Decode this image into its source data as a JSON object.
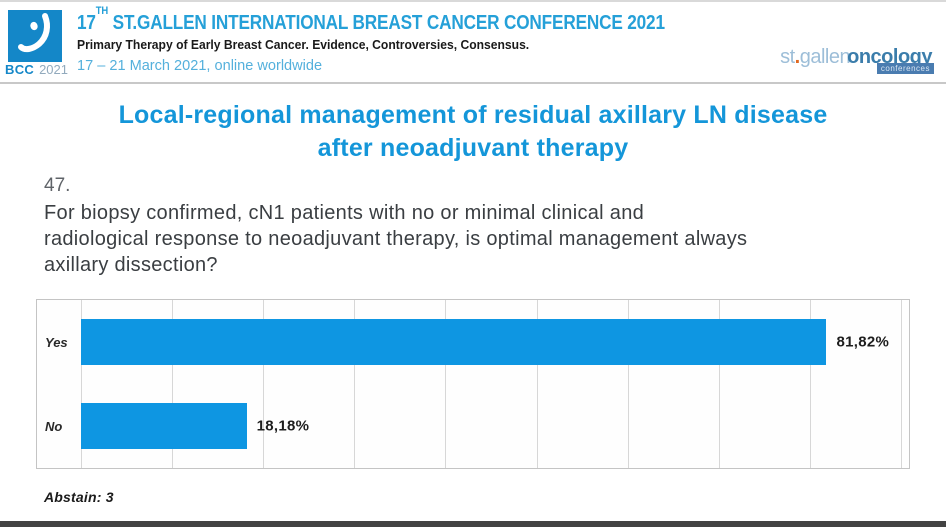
{
  "header": {
    "logo": {
      "bcc": "BCC",
      "year": "2021"
    },
    "title_num": "17",
    "title_sup": "TH",
    "title_rest": "ST.GALLEN INTERNATIONAL BREAST CANCER CONFERENCE 2021",
    "subtitle": "Primary Therapy of Early Breast Cancer. Evidence, Controversies, Consensus.",
    "dates": "17 – 21 March 2021, online worldwide",
    "right_logo": {
      "part1": "st",
      "dot": ".",
      "part2": "gallen",
      "part3": "oncology",
      "badge": "conferences"
    }
  },
  "slide": {
    "title_lines": [
      "Local-regional management of residual axillary LN disease",
      "after neoadjuvant therapy"
    ],
    "question_number": "47.",
    "question_lines": [
      "For biopsy confirmed, cN1 patients with no or minimal clinical and",
      "radiological response to neoadjuvant therapy, is optimal management always",
      "axillary dissection?"
    ],
    "abstain": "Abstain: 3"
  },
  "chart_data": {
    "type": "bar",
    "orientation": "horizontal",
    "categories": [
      "Yes",
      "No"
    ],
    "values": [
      81.82,
      18.18
    ],
    "value_labels": [
      "81,82%",
      "18,18%"
    ],
    "title": "",
    "xlabel": "",
    "ylabel": "",
    "xlim": [
      0,
      90
    ],
    "gridline_step": 10,
    "grid": true,
    "legend": false,
    "bar_color": "#0e96e2"
  },
  "colors": {
    "header_title_blue": "#25a0d8",
    "slide_title_blue": "#1496d9",
    "bar_blue": "#0e96e2",
    "logo_square_blue": "#1487c8",
    "dates_blue": "#54b0dc",
    "badge_blue": "#4a7cb0",
    "dot_orange": "#e06820",
    "bottom_bar_gray": "#434343"
  }
}
